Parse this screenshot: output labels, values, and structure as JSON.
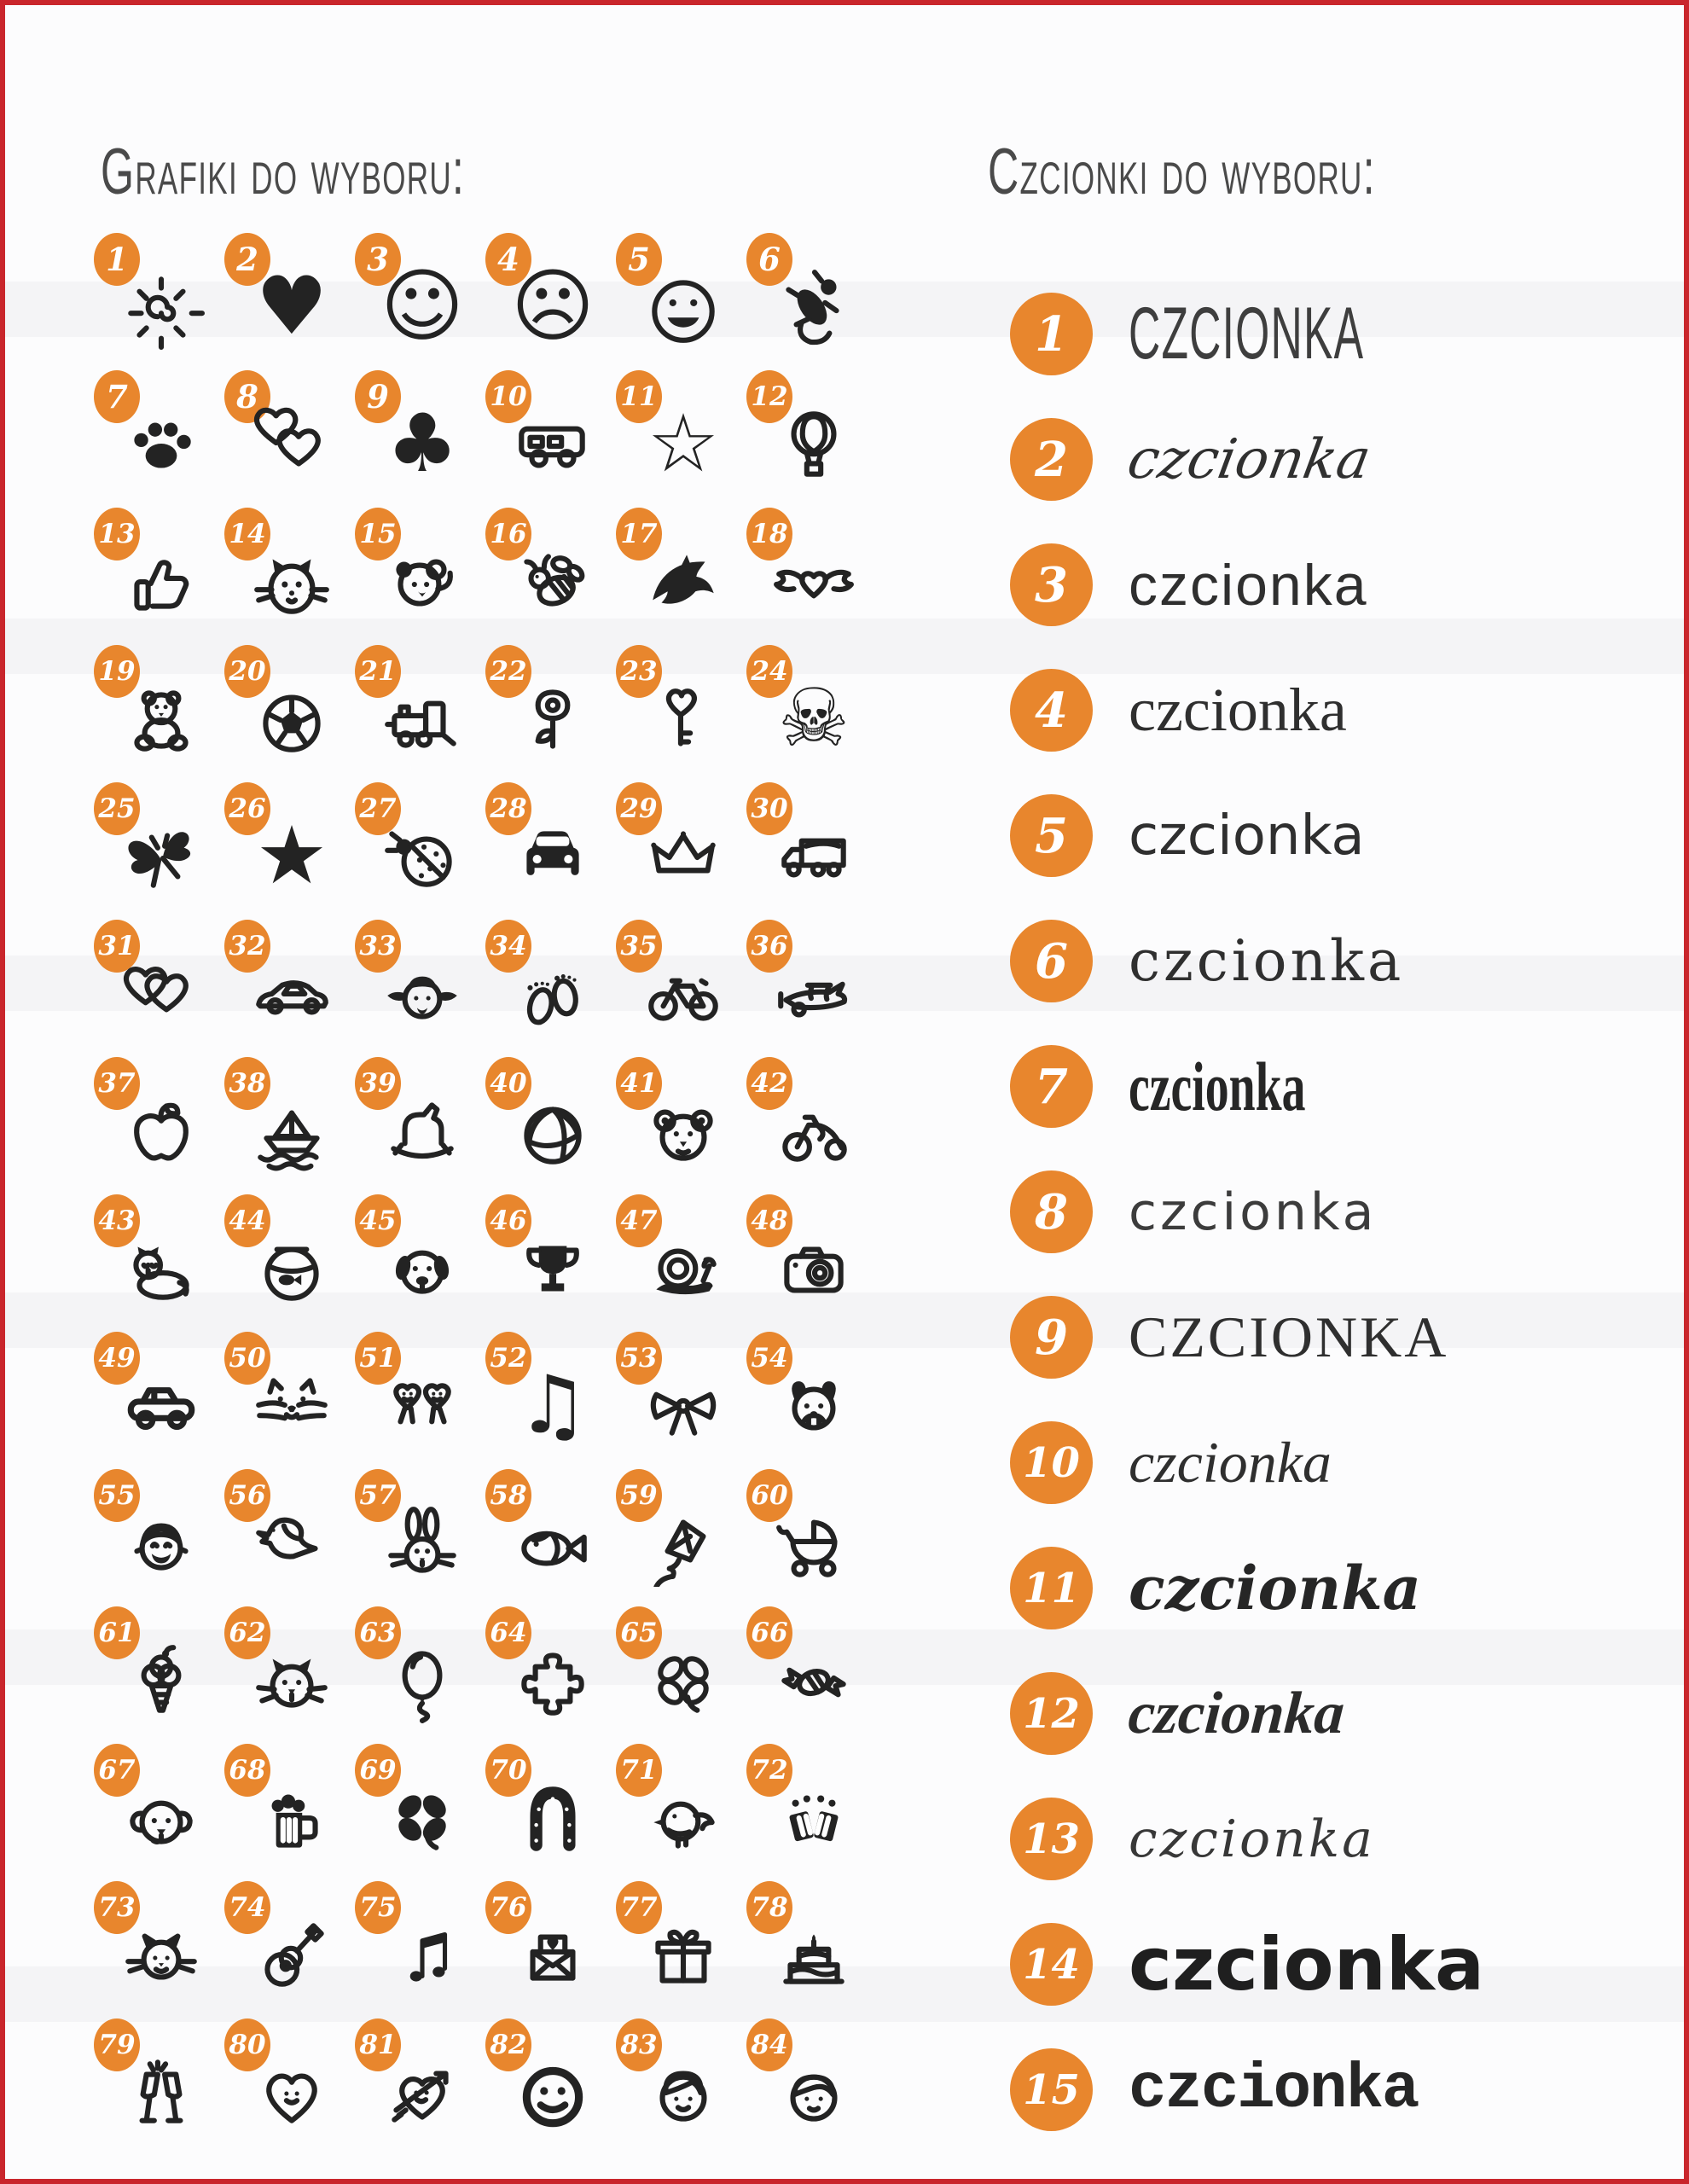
{
  "colors": {
    "accent_orange": "#E8862D",
    "border_red": "#C9262C",
    "ink": "#232323",
    "heading_gray": "#4A4A4A",
    "background": "#FCFCFD"
  },
  "graphics": {
    "heading": "Grafiki do wyboru:",
    "items": [
      {
        "n": 1,
        "name": "sun-doodle"
      },
      {
        "n": 2,
        "name": "heart-solid"
      },
      {
        "n": 3,
        "name": "smiley-face"
      },
      {
        "n": 4,
        "name": "sad-face"
      },
      {
        "n": 5,
        "name": "laughing-face"
      },
      {
        "n": 6,
        "name": "gecko"
      },
      {
        "n": 7,
        "name": "paw-print"
      },
      {
        "n": 8,
        "name": "two-hearts"
      },
      {
        "n": 9,
        "name": "clover-club"
      },
      {
        "n": 10,
        "name": "van"
      },
      {
        "n": 11,
        "name": "star-outline"
      },
      {
        "n": 12,
        "name": "hot-air-balloon"
      },
      {
        "n": 13,
        "name": "thumbs-up"
      },
      {
        "n": 14,
        "name": "cat-face"
      },
      {
        "n": 15,
        "name": "koala-waving"
      },
      {
        "n": 16,
        "name": "bee"
      },
      {
        "n": 17,
        "name": "dolphin"
      },
      {
        "n": 18,
        "name": "winged-heart"
      },
      {
        "n": 19,
        "name": "teddy-bear"
      },
      {
        "n": 20,
        "name": "soccer-ball"
      },
      {
        "n": 21,
        "name": "train"
      },
      {
        "n": 22,
        "name": "rose"
      },
      {
        "n": 23,
        "name": "heart-key"
      },
      {
        "n": 24,
        "name": "skull-crossbones"
      },
      {
        "n": 25,
        "name": "butterfly"
      },
      {
        "n": 26,
        "name": "star-solid"
      },
      {
        "n": 27,
        "name": "ladybug"
      },
      {
        "n": 28,
        "name": "car-front"
      },
      {
        "n": 29,
        "name": "crown"
      },
      {
        "n": 30,
        "name": "truck"
      },
      {
        "n": 31,
        "name": "linked-hearts"
      },
      {
        "n": 32,
        "name": "sports-car"
      },
      {
        "n": 33,
        "name": "girl-pigtails"
      },
      {
        "n": 34,
        "name": "baby-feet"
      },
      {
        "n": 35,
        "name": "bicycle"
      },
      {
        "n": 36,
        "name": "airplane"
      },
      {
        "n": 37,
        "name": "apple"
      },
      {
        "n": 38,
        "name": "paper-boat"
      },
      {
        "n": 39,
        "name": "rocking-horse"
      },
      {
        "n": 40,
        "name": "volleyball"
      },
      {
        "n": 41,
        "name": "bear-face"
      },
      {
        "n": 42,
        "name": "tricycle"
      },
      {
        "n": 43,
        "name": "lying-cat"
      },
      {
        "n": 44,
        "name": "fishbowl"
      },
      {
        "n": 45,
        "name": "dog-face"
      },
      {
        "n": 46,
        "name": "trophy"
      },
      {
        "n": 47,
        "name": "snail"
      },
      {
        "n": 48,
        "name": "camera"
      },
      {
        "n": 49,
        "name": "car-side"
      },
      {
        "n": 50,
        "name": "cat-whiskers"
      },
      {
        "n": 51,
        "name": "dancing-hearts"
      },
      {
        "n": 52,
        "name": "music-note"
      },
      {
        "n": 53,
        "name": "ribbon-bow"
      },
      {
        "n": 54,
        "name": "bulldog-face"
      },
      {
        "n": 55,
        "name": "laughing-boy"
      },
      {
        "n": 56,
        "name": "dove"
      },
      {
        "n": 57,
        "name": "rabbit-face"
      },
      {
        "n": 58,
        "name": "fish"
      },
      {
        "n": 59,
        "name": "kite"
      },
      {
        "n": 60,
        "name": "pram"
      },
      {
        "n": 61,
        "name": "ice-cream-cone"
      },
      {
        "n": 62,
        "name": "kitten-face"
      },
      {
        "n": 63,
        "name": "balloon"
      },
      {
        "n": 64,
        "name": "puzzle-piece"
      },
      {
        "n": 65,
        "name": "clover-outline"
      },
      {
        "n": 66,
        "name": "candy"
      },
      {
        "n": 67,
        "name": "puppy-face"
      },
      {
        "n": 68,
        "name": "beer-mug"
      },
      {
        "n": 69,
        "name": "clover-solid"
      },
      {
        "n": 70,
        "name": "horseshoe"
      },
      {
        "n": 71,
        "name": "bird-chick"
      },
      {
        "n": 72,
        "name": "beer-toast"
      },
      {
        "n": 73,
        "name": "cat-doodle"
      },
      {
        "n": 74,
        "name": "guitar"
      },
      {
        "n": 75,
        "name": "music-notes"
      },
      {
        "n": 76,
        "name": "love-letter"
      },
      {
        "n": 77,
        "name": "gift-box"
      },
      {
        "n": 78,
        "name": "birthday-cake"
      },
      {
        "n": 79,
        "name": "champagne-glasses"
      },
      {
        "n": 80,
        "name": "smiling-heart"
      },
      {
        "n": 81,
        "name": "arrow-heart"
      },
      {
        "n": 82,
        "name": "bold-smiley"
      },
      {
        "n": 83,
        "name": "girl-face"
      },
      {
        "n": 84,
        "name": "boy-face"
      }
    ]
  },
  "fonts": {
    "heading": "Czcionki do wyboru:",
    "items": [
      {
        "n": 1,
        "label": "CZCIONKA",
        "style": "tall handwritten caps"
      },
      {
        "n": 2,
        "label": "czcionka",
        "style": "calligraphic script"
      },
      {
        "n": 3,
        "label": "czcionka",
        "style": "geometric sans-serif"
      },
      {
        "n": 4,
        "label": "czcionka",
        "style": "classic serif"
      },
      {
        "n": 5,
        "label": "czcionka",
        "style": "comic rounded"
      },
      {
        "n": 6,
        "label": "czcionka",
        "style": "decorative curly"
      },
      {
        "n": 7,
        "label": "czcionka",
        "style": "condensed modern serif"
      },
      {
        "n": 8,
        "label": "czcionka",
        "style": "thin rounded sans"
      },
      {
        "n": 9,
        "label": "CZCIONKA",
        "style": "roman serif capitals"
      },
      {
        "n": 10,
        "label": "czcionka",
        "style": "italic serif"
      },
      {
        "n": 11,
        "label": "czcionka",
        "style": "bold brush script"
      },
      {
        "n": 12,
        "label": "czcionka",
        "style": "formal script italic"
      },
      {
        "n": 13,
        "label": "czcionka",
        "style": "delicate script italic"
      },
      {
        "n": 14,
        "label": "czcionka",
        "style": "bold rounded marker"
      },
      {
        "n": 15,
        "label": "czcionka",
        "style": "slab serif typewriter"
      }
    ]
  }
}
